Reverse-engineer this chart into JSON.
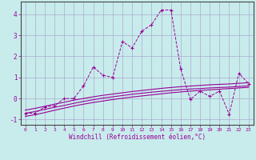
{
  "xlabel": "Windchill (Refroidissement éolien,°C)",
  "x_data": [
    0,
    1,
    2,
    3,
    4,
    5,
    6,
    7,
    8,
    9,
    10,
    11,
    12,
    13,
    14,
    15,
    16,
    17,
    18,
    19,
    20,
    21,
    22,
    23
  ],
  "y_main": [
    -0.7,
    -0.7,
    -0.4,
    -0.35,
    0.0,
    0.0,
    0.6,
    1.5,
    1.1,
    1.0,
    2.7,
    2.4,
    3.2,
    3.5,
    4.2,
    4.2,
    1.4,
    -0.05,
    0.35,
    0.1,
    0.35,
    -0.75,
    1.2,
    0.7
  ],
  "y_line1": [
    -0.7,
    -0.62,
    -0.52,
    -0.42,
    -0.33,
    -0.23,
    -0.14,
    -0.06,
    0.02,
    0.08,
    0.14,
    0.2,
    0.25,
    0.3,
    0.34,
    0.38,
    0.42,
    0.45,
    0.47,
    0.5,
    0.52,
    0.54,
    0.57,
    0.6
  ],
  "y_line2": [
    -0.85,
    -0.77,
    -0.67,
    -0.56,
    -0.46,
    -0.36,
    -0.27,
    -0.19,
    -0.12,
    -0.05,
    0.01,
    0.07,
    0.12,
    0.17,
    0.22,
    0.27,
    0.31,
    0.35,
    0.38,
    0.41,
    0.44,
    0.47,
    0.5,
    0.53
  ],
  "y_line3": [
    -0.55,
    -0.47,
    -0.37,
    -0.27,
    -0.18,
    -0.08,
    0.0,
    0.08,
    0.15,
    0.21,
    0.27,
    0.33,
    0.38,
    0.43,
    0.48,
    0.52,
    0.56,
    0.59,
    0.62,
    0.65,
    0.67,
    0.69,
    0.72,
    0.75
  ],
  "line_color": "#990099",
  "bg_color": "#c8ecec",
  "grid_color": "#aaaacc",
  "ylim": [
    -1.25,
    4.6
  ],
  "xlim": [
    -0.5,
    23.5
  ]
}
